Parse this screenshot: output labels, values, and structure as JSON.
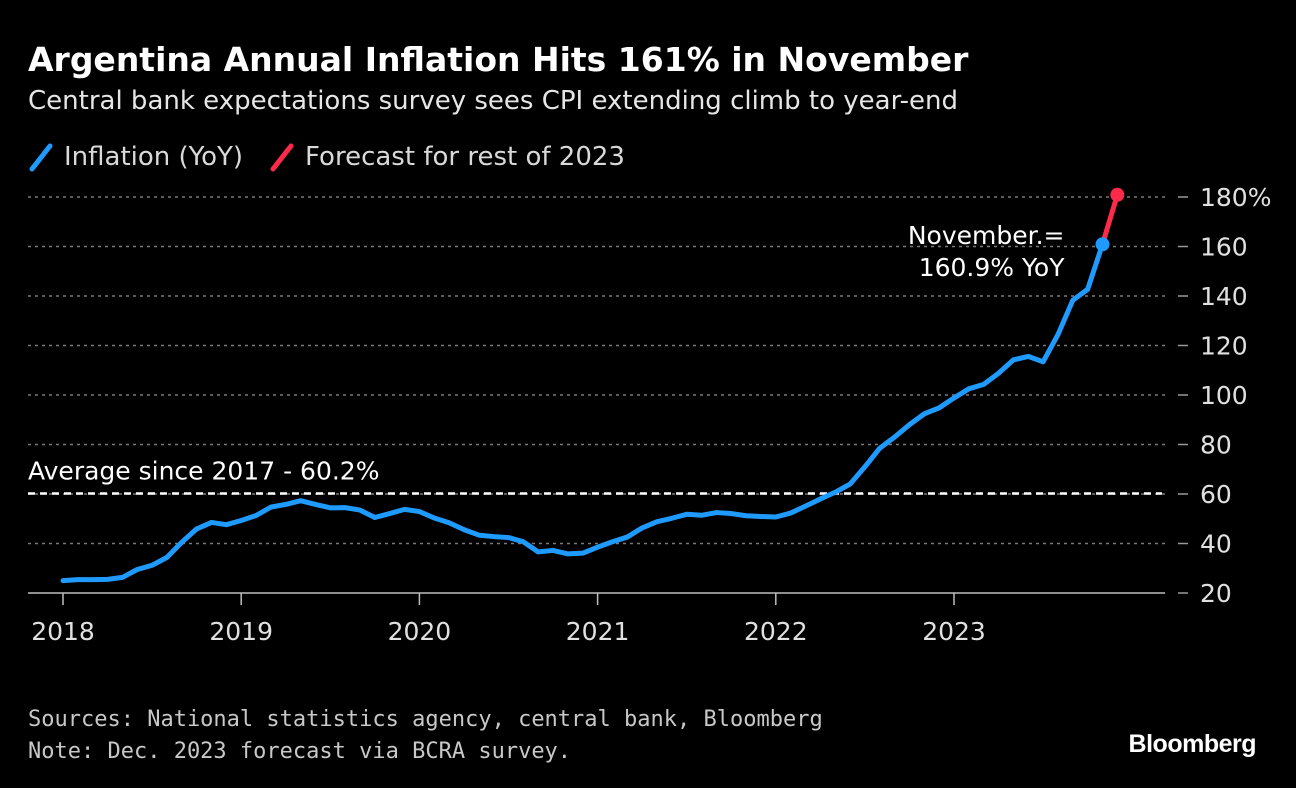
{
  "header": {
    "title": "Argentina Annual Inflation Hits 161% in November",
    "subtitle": "Central bank expectations survey sees CPI extending climb to year-end"
  },
  "legend": [
    {
      "label": "Inflation (YoY)",
      "color": "#1f9bff"
    },
    {
      "label": "Forecast for rest of 2023",
      "color": "#ff2a4a"
    }
  ],
  "footer": {
    "source": "Sources: National statistics agency, central bank, Bloomberg",
    "note": "Note: Dec. 2023 forecast via BCRA survey.",
    "brand": "Bloomberg"
  },
  "chart_data": {
    "type": "line",
    "title": "Argentina Annual Inflation Hits 161% in November",
    "ylabel": "",
    "xlabel": "",
    "ylim": [
      20,
      180
    ],
    "yticks": [
      20,
      40,
      60,
      80,
      100,
      120,
      140,
      160,
      180
    ],
    "ytick_labels": [
      "20",
      "40",
      "60",
      "80",
      "100",
      "120",
      "140",
      "160",
      "180%"
    ],
    "xticks": [
      2018,
      2019,
      2020,
      2021,
      2022,
      2023
    ],
    "xtick_labels": [
      "2018",
      "2019",
      "2020",
      "2021",
      "2022",
      "2023"
    ],
    "grid": true,
    "series": [
      {
        "name": "Inflation (YoY)",
        "color": "#1f9bff",
        "start": 2018.0,
        "step_months": 1,
        "values": [
          25.0,
          25.4,
          25.4,
          25.5,
          26.3,
          29.5,
          31.2,
          34.4,
          40.5,
          45.9,
          48.5,
          47.6,
          49.3,
          51.3,
          54.7,
          55.8,
          57.3,
          55.8,
          54.4,
          54.5,
          53.5,
          50.5,
          52.1,
          53.8,
          52.9,
          50.3,
          48.4,
          45.6,
          43.4,
          42.8,
          42.4,
          40.7,
          36.6,
          37.2,
          35.8,
          36.1,
          38.5,
          40.7,
          42.6,
          46.3,
          48.8,
          50.2,
          51.8,
          51.4,
          52.5,
          52.1,
          51.2,
          50.9,
          50.7,
          52.3,
          55.1,
          58.0,
          60.7,
          64.0,
          71.0,
          78.5,
          83.0,
          88.0,
          92.4,
          94.8,
          98.8,
          102.5,
          104.3,
          108.8,
          114.2,
          115.6,
          113.4,
          124.4,
          138.3,
          142.7,
          160.9
        ],
        "annotation": {
          "line1": "November.=",
          "line2": "160.9% YoY"
        }
      },
      {
        "name": "Forecast for rest of 2023",
        "color": "#ff2a4a",
        "x": [
          2023.8333,
          2023.9167
        ],
        "values": [
          160.9,
          180.9
        ]
      }
    ],
    "reference_line": {
      "label": "Average since 2017 - 60.2%",
      "value": 60.2
    }
  }
}
